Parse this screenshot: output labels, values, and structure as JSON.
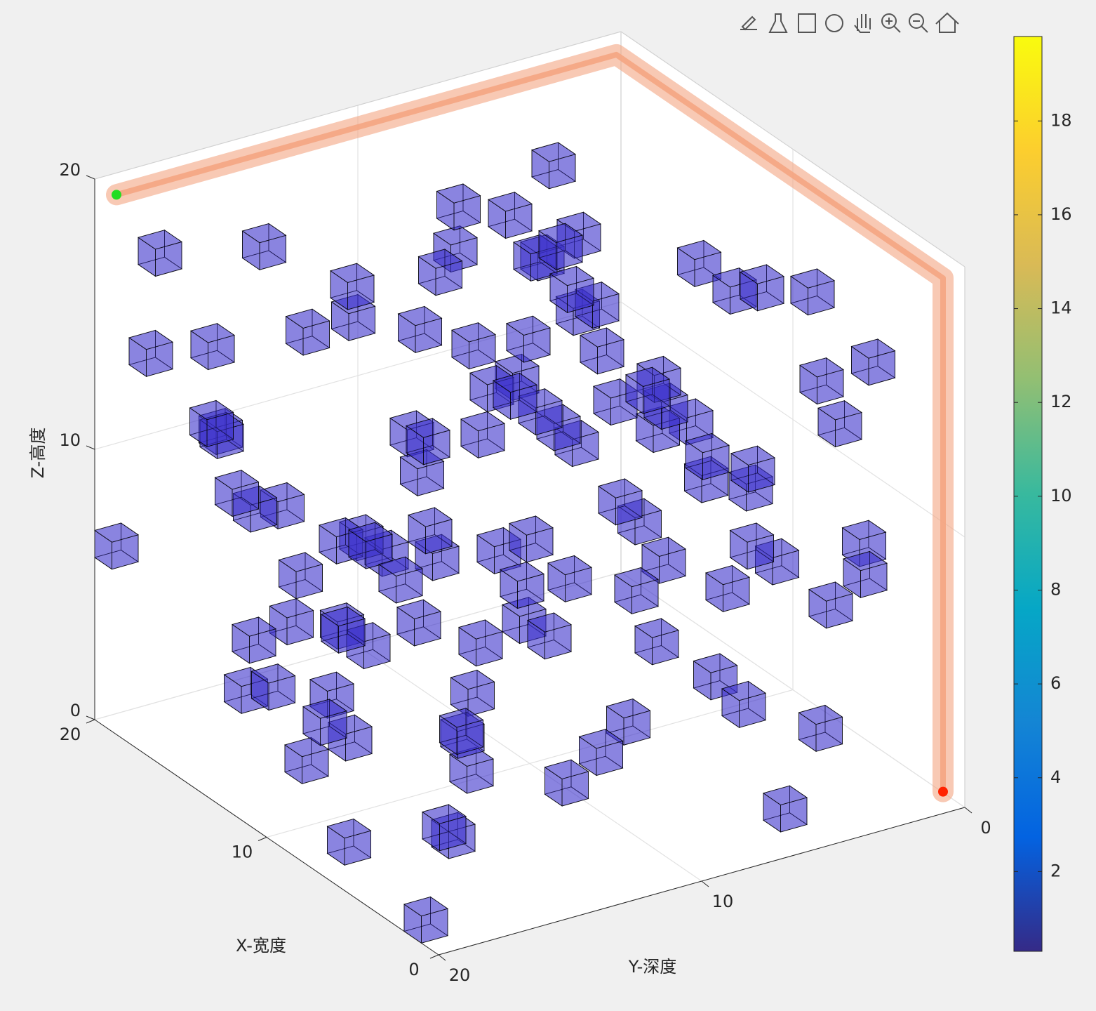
{
  "chart_data": {
    "type": "voxel3d",
    "xlabel": "X-宽度",
    "ylabel": "Y-深度",
    "zlabel": "Z-高度",
    "xlim": [
      0,
      20
    ],
    "ylim": [
      0,
      20
    ],
    "zlim": [
      0,
      20
    ],
    "xticks": [
      0,
      10,
      20
    ],
    "yticks": [
      0,
      10,
      20
    ],
    "zticks": [
      0,
      10,
      20
    ],
    "grid": true,
    "obstacles": {
      "color": "#3b2fc9",
      "x": [
        19,
        18,
        15,
        10,
        8,
        5,
        14,
        12,
        3,
        6,
        9,
        11,
        16,
        13,
        7,
        4,
        2,
        17,
        12,
        9,
        6,
        3,
        1,
        0,
        15,
        10,
        5,
        8,
        13,
        18,
        11,
        7,
        4,
        2,
        16,
        14,
        12,
        9,
        6,
        3,
        1,
        0,
        19,
        17,
        15,
        13,
        11,
        9,
        7,
        5,
        3,
        1,
        18,
        16,
        14,
        12,
        10,
        8,
        6,
        4,
        2,
        0,
        19,
        17,
        15,
        13,
        11,
        9,
        7,
        5,
        3,
        1,
        18,
        16,
        14,
        12,
        10,
        8,
        6,
        4,
        2,
        0,
        19,
        17,
        15,
        13,
        11,
        9,
        7,
        5,
        3,
        1,
        18,
        16,
        14,
        12,
        10,
        8,
        6,
        4,
        2,
        0,
        17,
        15,
        11,
        9,
        5,
        3,
        1,
        19
      ],
      "y": [
        19,
        18,
        16,
        12,
        10,
        6,
        15,
        10,
        3,
        4,
        8,
        13,
        17,
        9,
        5,
        2,
        5,
        14,
        15,
        12,
        14,
        10,
        8,
        3,
        10,
        5,
        9,
        14,
        18,
        13,
        17,
        18,
        16,
        13,
        6,
        4,
        3,
        1,
        0,
        1,
        4,
        6,
        10,
        8,
        5,
        7,
        9,
        11,
        13,
        15,
        17,
        19,
        4,
        2,
        12,
        14,
        16,
        18,
        12,
        8,
        6,
        9,
        15,
        11,
        13,
        15,
        7,
        5,
        3,
        1,
        13,
        11,
        16,
        12,
        8,
        6,
        4,
        2,
        10,
        12,
        14,
        16,
        6,
        3,
        1,
        11,
        19,
        17,
        15,
        13,
        11,
        15,
        10,
        15,
        17,
        19,
        8,
        6,
        16,
        18,
        17,
        13,
        19,
        18,
        1,
        14,
        4,
        7,
        2,
        12
      ],
      "z": [
        6,
        17,
        18,
        19,
        19,
        19,
        15,
        14,
        18,
        17,
        16,
        12,
        11,
        10,
        12,
        14,
        9,
        7,
        5,
        3,
        2,
        4,
        6,
        10,
        8,
        7,
        11,
        9,
        3,
        2,
        1,
        0,
        1,
        3,
        16,
        13,
        9,
        15,
        11,
        7,
        3,
        1,
        12,
        14,
        18,
        16,
        13,
        8,
        6,
        4,
        2,
        0,
        10,
        8,
        6,
        4,
        2,
        5,
        7,
        9,
        12,
        14,
        9,
        5,
        3,
        1,
        5,
        3,
        1,
        5,
        8,
        10,
        13,
        15,
        11,
        17,
        11,
        9,
        13,
        15,
        17,
        12,
        15,
        12,
        9,
        7,
        6,
        10,
        14,
        16,
        18,
        13,
        4,
        1,
        9,
        11,
        18,
        13,
        8,
        11,
        6,
        5,
        14,
        12,
        3,
        17,
        8,
        13,
        16,
        3
      ]
    },
    "path": {
      "color": "#f4a582",
      "x": [
        19.5,
        19.5,
        0.5,
        0.5
      ],
      "y": [
        19.5,
        0.5,
        0.5,
        0.5
      ],
      "z": [
        19.5,
        19.5,
        19.5,
        0.5
      ]
    },
    "start": {
      "color": "#22dd22",
      "x": 19.5,
      "y": 19.5,
      "z": 19.5
    },
    "goal": {
      "color": "#ff2200",
      "x": 0.5,
      "y": 0.5,
      "z": 0.5
    },
    "colorbar": {
      "clim": [
        0.3,
        19.8
      ],
      "ticks": [
        2,
        4,
        6,
        8,
        10,
        12,
        14,
        16,
        18
      ],
      "colormap": [
        "#352a87",
        "#0363e1",
        "#1485d4",
        "#06a7c6",
        "#38b99e",
        "#92bf73",
        "#d9ba56",
        "#fcce2e",
        "#f9fb0e"
      ]
    }
  }
}
